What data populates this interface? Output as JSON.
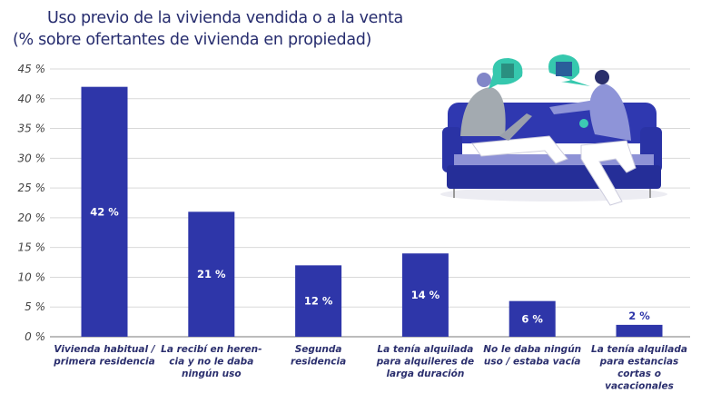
{
  "title_lines": [
    "Uso previo de la vivienda vendida o a la venta",
    "(% sobre ofertantes de vivienda en propiedad)"
  ],
  "colors": {
    "bar": "#2e36a9",
    "text": "#2b2f6e",
    "grid": "#d9d9d9",
    "axis": "#a6a6a6",
    "tick": "#444444"
  },
  "chart_data": {
    "type": "bar",
    "title": "Uso previo de la vivienda vendida o a la venta (% sobre ofertantes de vivienda en propiedad)",
    "xlabel": "",
    "ylabel": "",
    "ylim": [
      0,
      45
    ],
    "grid": true,
    "yticks": [
      0,
      5,
      10,
      15,
      20,
      25,
      30,
      35,
      40,
      45
    ],
    "ytick_labels": [
      "0 %",
      "5 %",
      "10 %",
      "15 %",
      "20 %",
      "25 %",
      "30 %",
      "35 %",
      "40 %",
      "45 %"
    ],
    "categories": [
      [
        "Vivienda habitual /",
        "primera residencia"
      ],
      [
        "La recibí en heren-",
        "cia y no le daba",
        "ningún uso"
      ],
      [
        "Segunda",
        "residencia"
      ],
      [
        "La tenía alquilada",
        "para alquileres de",
        "larga duración"
      ],
      [
        "No le daba ningún",
        "uso / estaba vacía"
      ],
      [
        "La tenía alquilada",
        "para estancias",
        "cortas o",
        "vacacionales"
      ]
    ],
    "values": [
      42,
      21,
      12,
      14,
      6,
      2
    ],
    "data_labels": [
      "42 %",
      "21 %",
      "12 %",
      "14 %",
      "6 %",
      "2 %"
    ]
  }
}
